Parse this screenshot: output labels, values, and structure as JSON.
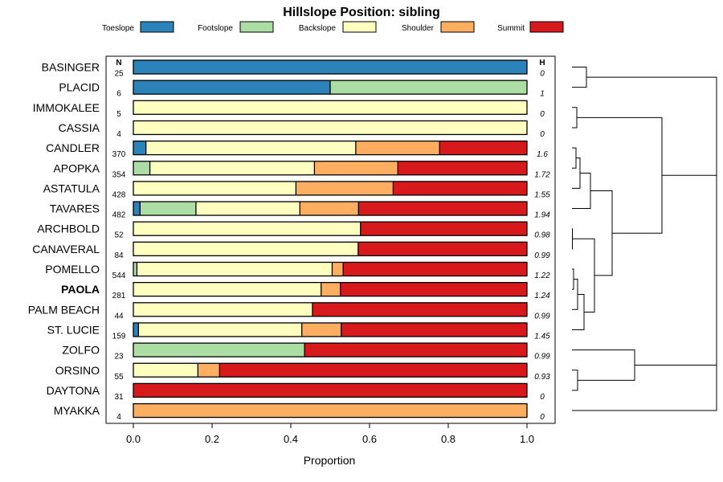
{
  "chart_data": {
    "type": "bar",
    "orientation": "horizontal",
    "stacked": true,
    "title": "Hillslope Position: sibling",
    "xlabel": "Proportion",
    "ylabel": "",
    "xlim": [
      0,
      1
    ],
    "xticks": [
      "0.0",
      "0.2",
      "0.4",
      "0.6",
      "0.8",
      "1.0"
    ],
    "legend_position": "top",
    "n_header": "N",
    "h_header": "H",
    "highlight": "PAOLA",
    "series": [
      {
        "name": "Toeslope",
        "color": "#2b83ba"
      },
      {
        "name": "Footslope",
        "color": "#abdda4"
      },
      {
        "name": "Backslope",
        "color": "#ffffbf"
      },
      {
        "name": "Shoulder",
        "color": "#fdae61"
      },
      {
        "name": "Summit",
        "color": "#d7191c"
      }
    ],
    "categories": [
      "BASINGER",
      "PLACID",
      "IMMOKALEE",
      "CASSIA",
      "CANDLER",
      "APOPKA",
      "ASTATULA",
      "TAVARES",
      "ARCHBOLD",
      "CANAVERAL",
      "POMELLO",
      "PAOLA",
      "PALM BEACH",
      "ST. LUCIE",
      "ZOLFO",
      "ORSINO",
      "DAYTONA",
      "MYAKKA"
    ],
    "n": [
      "25",
      "6",
      "5",
      "4",
      "370",
      "354",
      "428",
      "482",
      "52",
      "84",
      "544",
      "281",
      "44",
      "159",
      "23",
      "55",
      "31",
      "4"
    ],
    "h": [
      "0",
      "1",
      "0",
      "0",
      "1.6",
      "1.72",
      "1.55",
      "1.94",
      "0.98",
      "0.99",
      "1.22",
      "1.24",
      "0.99",
      "1.45",
      "0.99",
      "0.93",
      "0",
      "0"
    ],
    "values": [
      [
        1.0,
        0,
        0,
        0,
        0
      ],
      [
        0.5,
        0.5,
        0,
        0,
        0
      ],
      [
        0,
        0,
        1.0,
        0,
        0
      ],
      [
        0,
        0,
        1.0,
        0,
        0
      ],
      [
        0.032,
        0,
        0.533,
        0.213,
        0.222
      ],
      [
        0,
        0.042,
        0.418,
        0.212,
        0.328
      ],
      [
        0,
        0,
        0.413,
        0.247,
        0.34
      ],
      [
        0.017,
        0.142,
        0.264,
        0.149,
        0.428
      ],
      [
        0,
        0,
        0.577,
        0,
        0.423
      ],
      [
        0,
        0,
        0.571,
        0,
        0.429
      ],
      [
        0,
        0.009,
        0.496,
        0.028,
        0.467
      ],
      [
        0,
        0,
        0.477,
        0.049,
        0.474
      ],
      [
        0,
        0,
        0.455,
        0,
        0.545
      ],
      [
        0.013,
        0,
        0.415,
        0.1,
        0.472
      ],
      [
        0,
        0.435,
        0,
        0,
        0.565
      ],
      [
        0,
        0,
        0.164,
        0.055,
        0.781
      ],
      [
        0,
        0,
        0,
        0,
        1.0
      ],
      [
        0,
        0,
        0,
        1.0,
        0
      ]
    ],
    "dendrogram": {
      "type": "hierarchical-clustering",
      "merges": [
        {
          "id": "m1",
          "a": "BASINGER",
          "b": "PLACID",
          "height": 0.18
        },
        {
          "id": "m2",
          "a": "IMMOKALEE",
          "b": "CASSIA",
          "height": 0.06
        },
        {
          "id": "m3",
          "a": "ARCHBOLD",
          "b": "CANAVERAL",
          "height": 0.005
        },
        {
          "id": "m4",
          "a": "POMELLO",
          "b": "PAOLA",
          "height": 0.02
        },
        {
          "id": "m5",
          "a": "CANDLER",
          "b": "APOPKA",
          "height": 0.05
        },
        {
          "id": "m6",
          "a": "m4",
          "b": "PALM BEACH",
          "height": 0.07
        },
        {
          "id": "m7",
          "a": "m5",
          "b": "ASTATULA",
          "height": 0.1
        },
        {
          "id": "m8",
          "a": "ORSINO",
          "b": "DAYTONA",
          "height": 0.07
        },
        {
          "id": "m9",
          "a": "m6",
          "b": "ST. LUCIE",
          "height": 0.15
        },
        {
          "id": "m10",
          "a": "m3",
          "b": "m9",
          "height": 0.28
        },
        {
          "id": "m11",
          "a": "m7",
          "b": "TAVARES",
          "height": 0.23
        },
        {
          "id": "m12",
          "a": "m11",
          "b": "m10",
          "height": 0.5
        },
        {
          "id": "m13",
          "a": "ZOLFO",
          "b": "m8",
          "height": 0.78
        },
        {
          "id": "m14",
          "a": "m2",
          "b": "m12",
          "height": 1.12
        },
        {
          "id": "m15",
          "a": "m13",
          "b": "MYAKKA",
          "height": 1.8
        },
        {
          "id": "m16",
          "a": "m1",
          "b": "m14",
          "height": 1.8
        },
        {
          "id": "m17",
          "a": "m16",
          "b": "m15",
          "height": 1.8
        }
      ]
    }
  }
}
